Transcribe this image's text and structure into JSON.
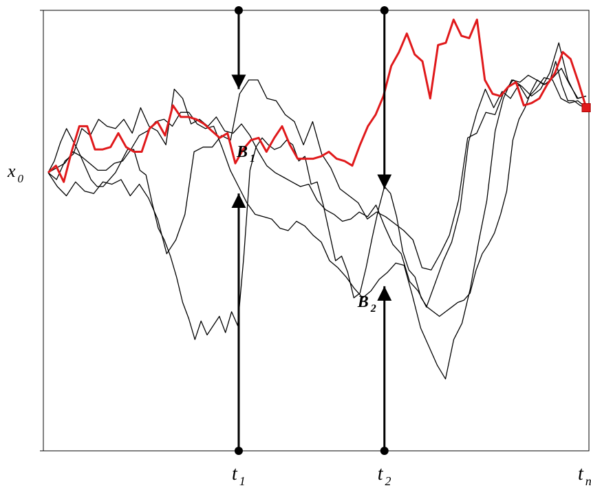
{
  "chart_data": {
    "type": "line",
    "title": "",
    "xlabel": "",
    "ylabel": "",
    "grid": false,
    "legend": "none",
    "x_range": [
      0,
      48
    ],
    "y_range": [
      -12,
      7
    ],
    "y_tick_label": {
      "main": "x",
      "sub": "0",
      "value": 0
    },
    "x_tick_labels": [
      {
        "name": "t1",
        "main": "t",
        "sub": "1",
        "x": 17
      },
      {
        "name": "t2",
        "main": "t",
        "sub": "2",
        "x": 30
      },
      {
        "name": "tn",
        "main": "t",
        "sub": "n",
        "x": 48
      }
    ],
    "barriers": [
      {
        "name": "b1",
        "main": "B",
        "sub": "1",
        "x": 17,
        "upper": 3.6,
        "lower": -0.9
      },
      {
        "name": "b2",
        "main": "B",
        "sub": "2",
        "x": 30,
        "upper": -0.7,
        "lower": -4.9
      }
    ],
    "series": [
      {
        "color": "#e0191b",
        "values": [
          0,
          0.3,
          -0.4,
          0.9,
          2.0,
          2.0,
          1.0,
          1.0,
          1.1,
          1.7,
          1.1,
          0.9,
          0.9,
          1.9,
          2.2,
          1.6,
          2.9,
          2.4,
          2.4,
          2.3,
          2.1,
          1.8,
          1.5,
          1.7,
          0.4,
          1.0,
          1.4,
          1.5,
          0.9,
          1.5,
          2.0,
          1.2,
          0.6,
          0.6,
          0.6,
          0.7,
          0.9,
          0.6,
          0.5,
          0.3,
          1.2,
          2.0,
          2.5,
          3.3,
          4.6,
          5.2,
          6.0,
          5.1,
          4.8,
          3.2,
          5.5,
          5.6,
          6.6,
          5.9,
          5.8,
          6.6,
          4.0,
          3.4,
          3.3,
          3.7,
          3.9,
          2.9,
          3.0,
          3.2,
          3.8,
          4.3,
          5.2,
          4.9,
          3.9,
          2.8
        ]
      },
      {
        "color": "#000000",
        "values": [
          0,
          -0.3,
          0.5,
          0.8,
          1.9,
          1.6,
          2.3,
          2.0,
          1.9,
          2.3,
          1.7,
          2.8,
          2.0,
          1.8,
          1.2,
          3.6,
          3.2,
          2.1,
          2.3,
          2.0,
          2.4,
          1.8,
          1.7,
          2.1,
          1.6,
          0.9,
          0.3,
          0.0,
          -0.2,
          -0.4,
          -0.6,
          -0.5,
          -1.2,
          -1.6,
          -1.8,
          -2.1,
          -2.0,
          -1.7,
          -1.9,
          -1.4,
          -2.3,
          -3.1,
          -3.5,
          -4.7,
          -5.1,
          -5.8,
          -4.8,
          -3.8,
          -3.0,
          -1.6,
          1.3,
          2.6,
          3.6,
          2.8,
          3.5,
          3.2,
          3.8,
          3.2,
          3.6,
          4.1,
          4.0,
          3.2,
          3.0,
          3.1,
          2.8
        ]
      },
      {
        "color": "#000000",
        "values": [
          0,
          -0.6,
          -1.0,
          -0.4,
          -0.8,
          -0.9,
          -0.4,
          -0.5,
          -0.3,
          -1.0,
          -0.5,
          -1.1,
          -2.0,
          -3.5,
          -2.9,
          -1.8,
          0.9,
          1.1,
          1.1,
          1.6,
          1.4,
          3.4,
          4.0,
          4.0,
          3.2,
          3.1,
          2.5,
          2.2,
          1.2,
          2.2,
          0.8,
          0.2,
          -0.7,
          -1.0,
          -1.3,
          -2.0,
          -1.7,
          -1.9,
          -2.2,
          -2.5,
          -2.9,
          -4.1,
          -4.2,
          -3.5,
          -2.7,
          -1.2,
          1.5,
          1.7,
          2.6,
          2.5,
          3.5,
          4.0,
          3.7,
          3.3,
          3.6,
          4.3,
          5.6,
          4.0,
          3.2,
          3.3
        ]
      },
      {
        "color": "#000000",
        "values": [
          0,
          0.2,
          0.4,
          0.9,
          0.7,
          0.4,
          0.1,
          0.1,
          0.4,
          0.5,
          1.0,
          1.6,
          1.8,
          2.2,
          2.3,
          2.0,
          2.6,
          2.6,
          2.1,
          1.9,
          2.0,
          1.1,
          0.1,
          -0.6,
          -1.3,
          -1.8,
          -1.9,
          -2.0,
          -2.4,
          -2.5,
          -2.1,
          -2.3,
          -2.7,
          -3.0,
          -3.8,
          -4.1,
          -4.5,
          -5.0,
          -5.4,
          -5.1,
          -4.6,
          -4.3,
          -3.9,
          -4.0,
          -5.3,
          -6.7,
          -7.5,
          -8.3,
          -8.9,
          -7.2,
          -6.5,
          -5.0,
          -3.0,
          -1.2,
          1.8,
          3.2,
          4.0,
          3.9,
          4.2,
          4.0,
          3.8,
          4.1,
          4.5,
          3.8,
          3.2,
          3.3
        ]
      },
      {
        "color": "#000000",
        "values": [
          0,
          0.5,
          1.3,
          1.9,
          1.4,
          0.9,
          0.3,
          -0.3,
          -0.6,
          -0.6,
          -0.3,
          0.0,
          0.5,
          1.0,
          1.0,
          0.1,
          -0.1,
          -1.3,
          -2.4,
          -2.9,
          -3.6,
          -4.5,
          -5.6,
          -6.3,
          -7.2,
          -6.4,
          -7.0,
          -6.6,
          -6.2,
          -6.9,
          -6.0,
          -6.6,
          -3.6,
          0.1,
          1.1,
          1.5,
          1.2,
          1.0,
          1.1,
          1.4,
          1.2,
          0.5,
          0.7,
          -0.5,
          -0.4,
          -1.4,
          -2.6,
          -3.8,
          -3.6,
          -4.3,
          -5.4,
          -5.2,
          -4.1,
          -2.8,
          -1.6,
          -0.6,
          -0.9,
          -1.9,
          -3.4,
          -4.2,
          -4.5,
          -5.4,
          -5.8,
          -6.0,
          -6.2,
          -6.0,
          -5.8,
          -5.6,
          -5.5,
          -5.2,
          -4.2,
          -3.5,
          -3.1,
          -2.6,
          -1.8,
          -0.8,
          1.4,
          2.3,
          2.8,
          3.5,
          4.0,
          3.8,
          3.9,
          4.8,
          3.8,
          3.1,
          3.1,
          2.9,
          2.8
        ]
      }
    ]
  }
}
